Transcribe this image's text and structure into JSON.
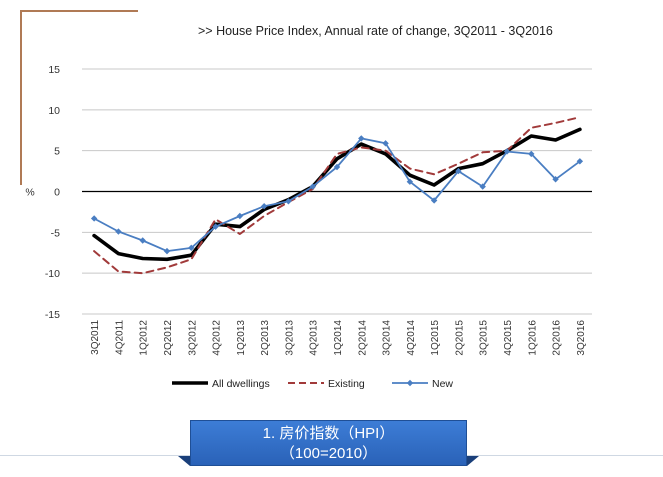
{
  "chart_data": {
    "type": "line",
    "title": ">> House Price Index, Annual rate of change, 3Q2011 - 3Q2016",
    "ylabel": "%",
    "ylim": [
      -15,
      15
    ],
    "yticks": [
      15,
      10,
      5,
      0,
      -5,
      -10,
      -15
    ],
    "grid": true,
    "legend_position": "bottom",
    "categories": [
      "3Q2011",
      "4Q2011",
      "1Q2012",
      "2Q2012",
      "3Q2012",
      "4Q2012",
      "1Q2013",
      "2Q2013",
      "3Q2013",
      "4Q2013",
      "1Q2014",
      "2Q2014",
      "3Q2014",
      "4Q2014",
      "1Q2015",
      "2Q2015",
      "3Q2015",
      "4Q2015",
      "1Q2016",
      "2Q2016",
      "3Q2016"
    ],
    "series": [
      {
        "name": "All dwellings",
        "color": "#000000",
        "style": "solid-thick",
        "values": [
          -5.4,
          -7.6,
          -8.2,
          -8.3,
          -7.8,
          -4.0,
          -4.3,
          -2.2,
          -1.0,
          0.6,
          4.0,
          5.8,
          4.6,
          2.0,
          0.8,
          2.8,
          3.4,
          5.0,
          6.8,
          6.3,
          7.6
        ]
      },
      {
        "name": "Existing",
        "color": "#a13a3a",
        "style": "dashed",
        "values": [
          -7.3,
          -9.8,
          -10.0,
          -9.3,
          -8.3,
          -3.4,
          -5.2,
          -3.0,
          -1.3,
          0.3,
          4.6,
          5.4,
          5.0,
          2.8,
          2.1,
          3.4,
          4.8,
          5.0,
          7.8,
          8.4,
          9.1
        ]
      },
      {
        "name": "New",
        "color": "#4a7ec2",
        "style": "solid-marker",
        "values": [
          -3.3,
          -4.9,
          -6.0,
          -7.3,
          -6.9,
          -4.3,
          -3.0,
          -1.8,
          -1.2,
          0.6,
          3.0,
          6.5,
          5.9,
          1.2,
          -1.1,
          2.5,
          0.6,
          4.9,
          4.6,
          1.5,
          3.7
        ]
      }
    ]
  },
  "caption": {
    "line1": "1. 房价指数（HPI）",
    "line2": "（100=2010）"
  }
}
